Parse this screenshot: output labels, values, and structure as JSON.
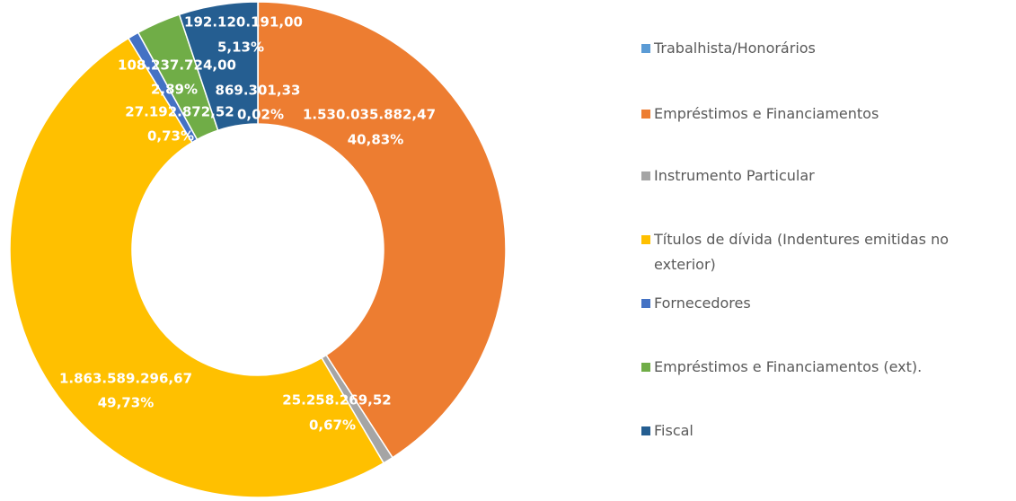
{
  "chart_data": {
    "type": "donut",
    "categories": [
      "Trabalhista/Honorários",
      "Empréstimos e Financiamentos",
      "Instrumento Particular",
      "Títulos de dívida (Indentures emitidas no exterior)",
      "Fornecedores",
      "Empréstimos e Financiamentos (ext).",
      "Fiscal"
    ],
    "values": [
      869301.33,
      1530035882.47,
      25258269.52,
      1863589296.67,
      27192872.52,
      108237724.0,
      192120191.0
    ],
    "value_labels": [
      "869.301,33",
      "1.530.035.882,47",
      "25.258.269,52",
      "1.863.589.296,67",
      "27.192.872,52",
      "108.237.724,00",
      "192.120.191,00"
    ],
    "percentages": [
      0.02,
      40.83,
      0.67,
      49.73,
      0.73,
      2.89,
      5.13
    ],
    "percentage_labels": [
      "0,02%",
      "40,83%",
      "0,67%",
      "49,73%",
      "0,73%",
      "2,89%",
      "5,13%"
    ],
    "colors": [
      "#5b9bd5",
      "#ed7d31",
      "#a5a5a5",
      "#ffc000",
      "#4472c4",
      "#70ad47",
      "#255e91"
    ],
    "legend": "right"
  }
}
